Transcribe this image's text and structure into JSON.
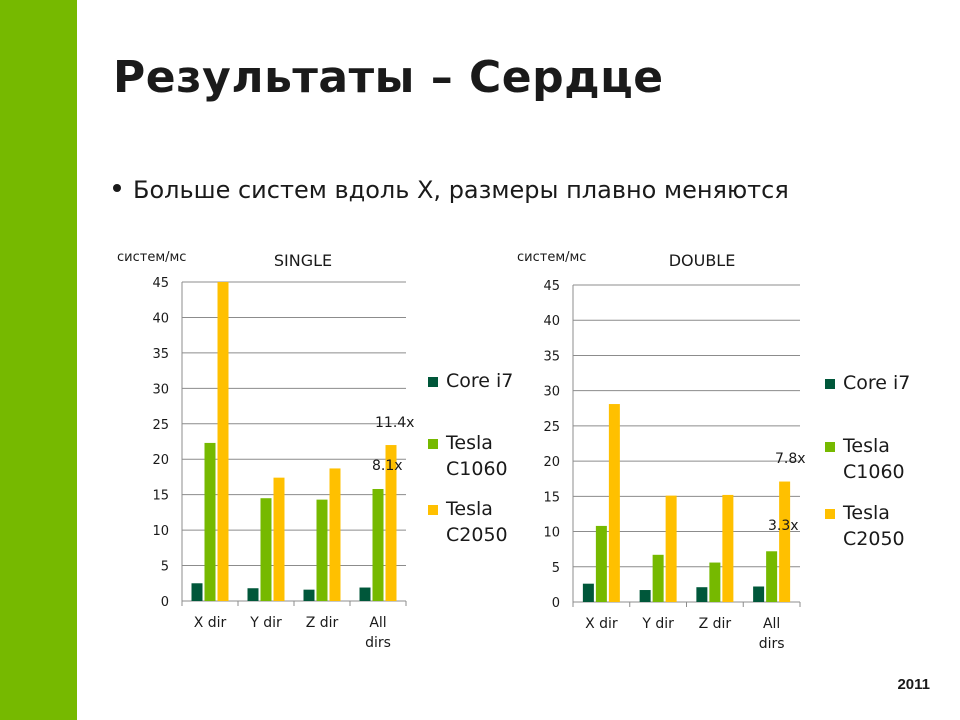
{
  "slide": {
    "title": "Результаты – Сердце",
    "bullet": "Больше систем вдоль X, размеры плавно меняются",
    "year": "2011",
    "accent_color": "#76b900"
  },
  "chart_data": [
    {
      "type": "bar",
      "title": "SINGLE",
      "ylabel": "систем/мс",
      "ylim": [
        0,
        45
      ],
      "yticks": [
        0,
        5,
        10,
        15,
        20,
        25,
        30,
        35,
        40,
        45
      ],
      "categories": [
        [
          "X dir"
        ],
        [
          "Y dir"
        ],
        [
          "Z dir"
        ],
        [
          "All",
          "dirs"
        ]
      ],
      "series": [
        {
          "name": "Core i7",
          "color": "#00573a",
          "values": [
            2.5,
            1.8,
            1.6,
            1.9
          ]
        },
        {
          "name": "Tesla C1060",
          "color": "#76b900",
          "values": [
            22.3,
            14.5,
            14.3,
            15.8
          ]
        },
        {
          "name": "Tesla C2050",
          "color": "#ffc000",
          "values": [
            45.0,
            17.4,
            18.7,
            22.0
          ]
        }
      ],
      "annotations": [
        "11.4x",
        "8.1x"
      ],
      "legend": "right",
      "grid": true
    },
    {
      "type": "bar",
      "title": "DOUBLE",
      "ylabel": "систем/мс",
      "ylim": [
        0,
        45
      ],
      "yticks": [
        0,
        5,
        10,
        15,
        20,
        25,
        30,
        35,
        40,
        45
      ],
      "categories": [
        [
          "X dir"
        ],
        [
          "Y dir"
        ],
        [
          "Z dir"
        ],
        [
          "All",
          "dirs"
        ]
      ],
      "series": [
        {
          "name": "Core i7",
          "color": "#00573a",
          "values": [
            2.6,
            1.7,
            2.1,
            2.2
          ]
        },
        {
          "name": "Tesla C1060",
          "color": "#76b900",
          "values": [
            10.8,
            6.7,
            5.6,
            7.2
          ]
        },
        {
          "name": "Tesla C2050",
          "color": "#ffc000",
          "values": [
            28.1,
            15.1,
            15.2,
            17.1
          ]
        }
      ],
      "annotations": [
        "7.8x",
        "3.3x"
      ],
      "legend": "right",
      "grid": true
    }
  ]
}
